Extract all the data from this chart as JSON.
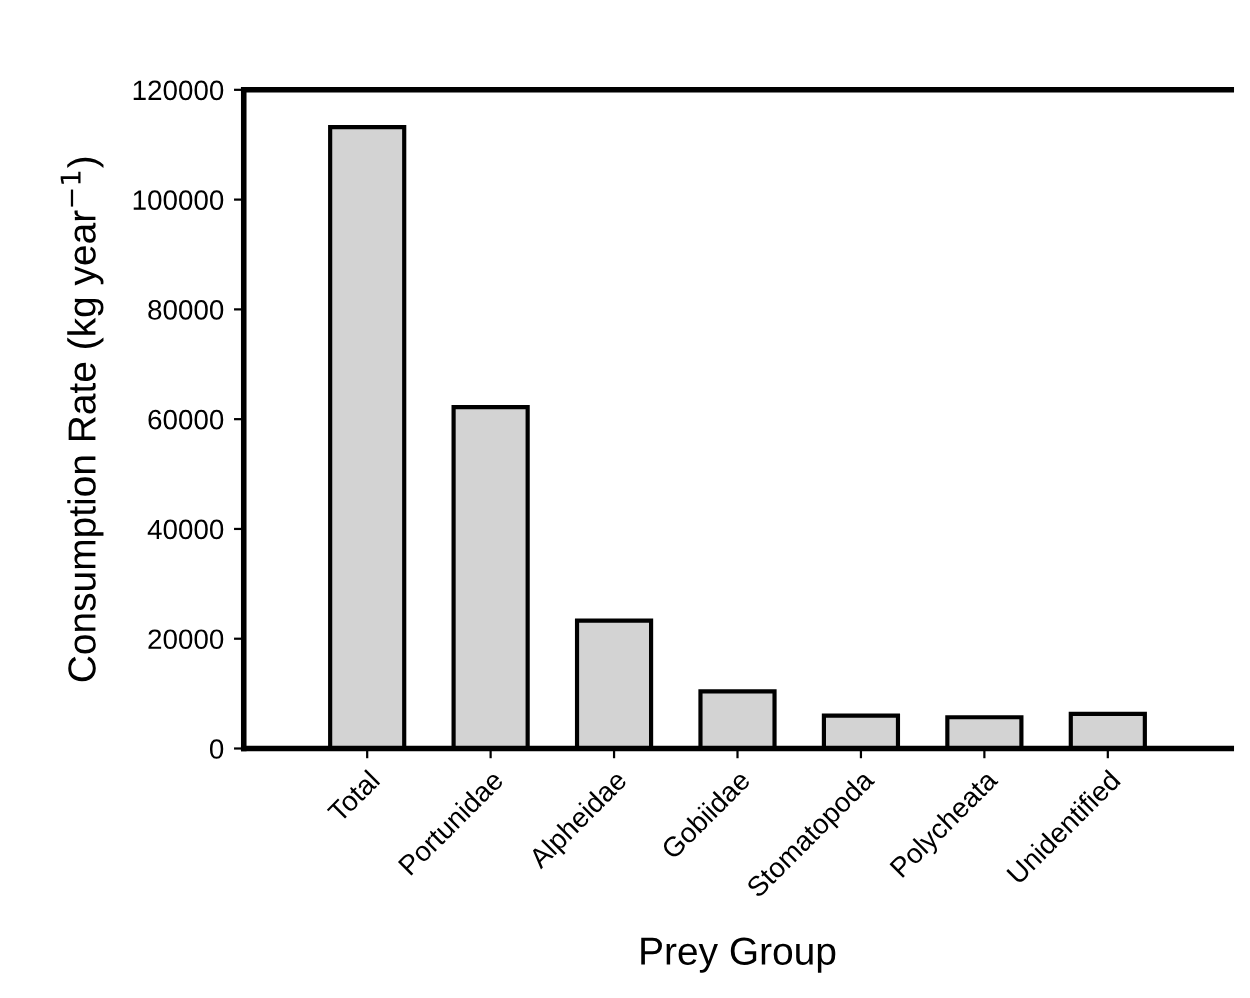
{
  "chart_data": {
    "type": "bar",
    "xlabel": "Prey Group",
    "ylabel": "Consumption Rate (kg year$^{−1}$)",
    "categories": [
      "Total",
      "Portunidae",
      "Alpheidae",
      "Gobiidae",
      "Stomatopoda",
      "Polycheata",
      "Unidentified"
    ],
    "values": [
      113200,
      62200,
      23300,
      10400,
      6000,
      5700,
      6300
    ],
    "color": "#d3d3d3",
    "ylim": [
      0,
      120000
    ],
    "yticks": [
      0,
      20000,
      40000,
      60000,
      80000,
      100000,
      120000
    ],
    "grid": false,
    "legend": false
  }
}
